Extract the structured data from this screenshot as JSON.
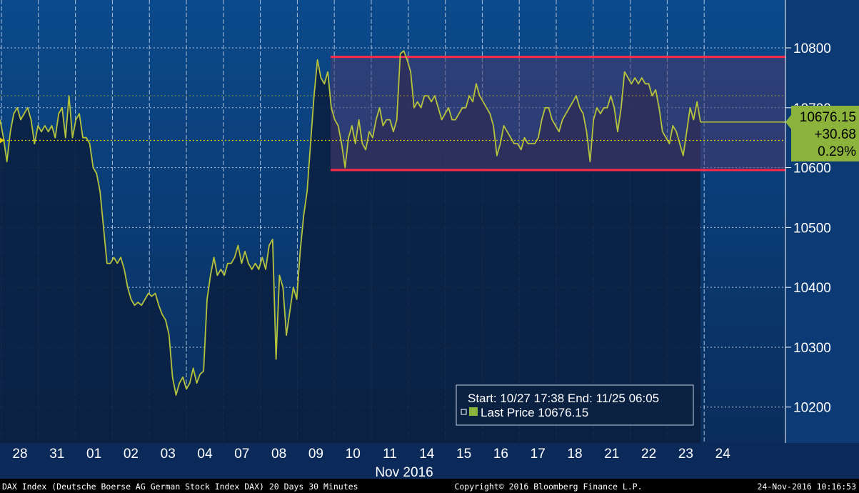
{
  "colors": {
    "background_top": "#0b4a8c",
    "background_bottom": "#0a2d5c",
    "area_fill": "#0b2142",
    "price_line": "#b6c33c",
    "range_fill": "#4a3a6e",
    "range_line": "#ff2a4a",
    "current_level": "#c8d23a",
    "prev_close_line": "#e6c800",
    "grid": "#c8d4e6",
    "badge_bg": "#8cb43c",
    "axis_text": "#ffffff",
    "footer_bg": "#000000"
  },
  "current_badge": {
    "price": "10676.15",
    "change": "+30.68",
    "percent": "0.29%"
  },
  "legend": {
    "line1": "Start: 10/27 17:38 End: 11/25 06:05",
    "line2": "Last Price 10676.15"
  },
  "footer": {
    "left": "DAX Index (Deutsche Boerse AG German Stock Index DAX) 20 Days 30 Minutes",
    "center": "Copyright© 2016 Bloomberg Finance L.P.",
    "right": "24-Nov-2016 10:16:53"
  },
  "chart_data": {
    "type": "line",
    "title": "",
    "xlabel": "",
    "ylabel": "",
    "ylim": [
      10140,
      10880
    ],
    "yticks": [
      10200,
      10300,
      10400,
      10500,
      10600,
      10700,
      10800
    ],
    "x_month_label": "Nov 2016",
    "x_day_labels": [
      "28",
      "31",
      "01",
      "02",
      "03",
      "04",
      "07",
      "08",
      "09",
      "10",
      "11",
      "14",
      "15",
      "16",
      "17",
      "18",
      "21",
      "22",
      "23",
      "24"
    ],
    "grid": true,
    "last_price": 10676.15,
    "change": 30.68,
    "change_pct": 0.29,
    "previous_close": 10645.47,
    "range_high": 10785,
    "range_low": 10596,
    "range_start_day": "10",
    "series": [
      {
        "name": "Last Price",
        "values": [
          10680,
          10650,
          10610,
          10660,
          10690,
          10700,
          10680,
          10690,
          10700,
          10680,
          10640,
          10670,
          10660,
          10670,
          10660,
          10670,
          10650,
          10690,
          10700,
          10650,
          10720,
          10650,
          10680,
          10690,
          10650,
          10650,
          10640,
          10600,
          10590,
          10560,
          10500,
          10440,
          10440,
          10450,
          10440,
          10450,
          10430,
          10400,
          10380,
          10370,
          10375,
          10370,
          10380,
          10390,
          10385,
          10390,
          10370,
          10355,
          10345,
          10320,
          10250,
          10220,
          10240,
          10250,
          10230,
          10240,
          10265,
          10240,
          10255,
          10260,
          10380,
          10420,
          10450,
          10420,
          10430,
          10420,
          10440,
          10440,
          10450,
          10470,
          10440,
          10460,
          10440,
          10430,
          10440,
          10430,
          10450,
          10430,
          10470,
          10480,
          10280,
          10420,
          10400,
          10320,
          10360,
          10400,
          10380,
          10460,
          10520,
          10560,
          10640,
          10720,
          10780,
          10750,
          10740,
          10760,
          10700,
          10680,
          10670,
          10640,
          10600,
          10650,
          10670,
          10640,
          10680,
          10640,
          10630,
          10660,
          10650,
          10680,
          10700,
          10670,
          10680,
          10680,
          10660,
          10680,
          10790,
          10795,
          10780,
          10760,
          10700,
          10710,
          10700,
          10720,
          10720,
          10710,
          10720,
          10700,
          10680,
          10690,
          10700,
          10680,
          10680,
          10690,
          10700,
          10700,
          10720,
          10710,
          10740,
          10720,
          10710,
          10700,
          10690,
          10670,
          10620,
          10640,
          10670,
          10660,
          10650,
          10640,
          10640,
          10630,
          10650,
          10640,
          10640,
          10640,
          10650,
          10680,
          10700,
          10700,
          10680,
          10670,
          10660,
          10680,
          10690,
          10700,
          10710,
          10720,
          10700,
          10690,
          10660,
          10610,
          10680,
          10700,
          10690,
          10700,
          10700,
          10720,
          10700,
          10660,
          10700,
          10760,
          10750,
          10740,
          10750,
          10740,
          10750,
          10740,
          10740,
          10720,
          10730,
          10700,
          10660,
          10650,
          10640,
          10670,
          10660,
          10640,
          10620,
          10660,
          10700,
          10680,
          10710,
          10676
        ]
      }
    ]
  }
}
